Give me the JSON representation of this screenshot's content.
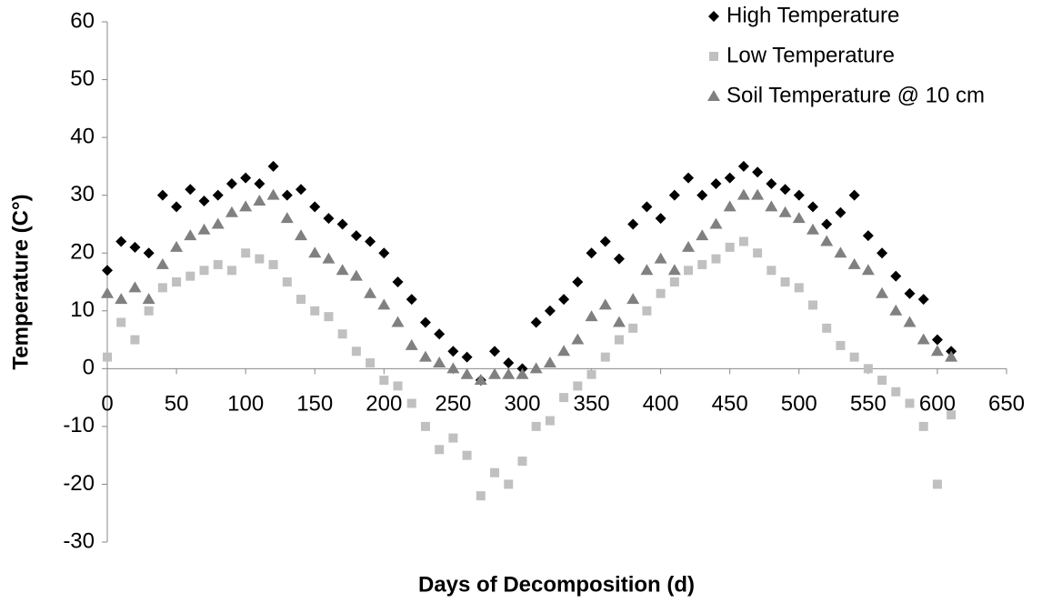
{
  "chart_data": {
    "type": "scatter",
    "x_label": "Days of Decomposition (d)",
    "y_label": "Temperature (C°)",
    "x": [
      0,
      10,
      20,
      30,
      40,
      50,
      60,
      70,
      80,
      90,
      100,
      110,
      120,
      130,
      140,
      150,
      160,
      170,
      180,
      190,
      200,
      210,
      220,
      230,
      240,
      250,
      260,
      270,
      280,
      290,
      300,
      310,
      320,
      330,
      340,
      350,
      360,
      370,
      380,
      390,
      400,
      410,
      420,
      430,
      440,
      450,
      460,
      470,
      480,
      490,
      500,
      510,
      520,
      530,
      540,
      550,
      560,
      570,
      580,
      590,
      600,
      610
    ],
    "series": [
      {
        "name": "High Temperature",
        "color": "#000000",
        "marker": "diamond",
        "values": [
          17,
          22,
          21,
          20,
          30,
          28,
          31,
          29,
          30,
          32,
          33,
          32,
          35,
          30,
          31,
          28,
          26,
          25,
          23,
          22,
          20,
          15,
          12,
          8,
          6,
          3,
          2,
          -2,
          3,
          1,
          0,
          8,
          10,
          12,
          15,
          20,
          22,
          19,
          25,
          28,
          26,
          30,
          33,
          30,
          32,
          33,
          35,
          34,
          32,
          31,
          30,
          28,
          25,
          27,
          30,
          23,
          20,
          16,
          13,
          12,
          5,
          3
        ]
      },
      {
        "name": "Low Temperature",
        "color": "#c0c0c0",
        "marker": "square",
        "values": [
          2,
          8,
          5,
          10,
          14,
          15,
          16,
          17,
          18,
          17,
          20,
          19,
          18,
          15,
          12,
          10,
          9,
          6,
          3,
          1,
          -2,
          -3,
          -6,
          -10,
          -14,
          -12,
          -15,
          -22,
          -18,
          -20,
          -16,
          -10,
          -9,
          -5,
          -3,
          -1,
          2,
          5,
          7,
          10,
          13,
          15,
          17,
          18,
          19,
          21,
          22,
          20,
          17,
          15,
          14,
          11,
          7,
          4,
          2,
          0,
          -2,
          -4,
          -6,
          -10,
          -20,
          -8
        ]
      },
      {
        "name": "Soil Temperature @ 10 cm",
        "color": "#808080",
        "marker": "triangle",
        "values": [
          13,
          12,
          14,
          12,
          18,
          21,
          23,
          24,
          25,
          27,
          28,
          29,
          30,
          26,
          23,
          20,
          19,
          17,
          16,
          13,
          11,
          8,
          4,
          2,
          1,
          0,
          -1,
          -2,
          -1,
          -1,
          -1,
          0,
          1,
          3,
          5,
          9,
          11,
          8,
          12,
          17,
          19,
          17,
          21,
          23,
          25,
          28,
          30,
          30,
          28,
          27,
          26,
          24,
          22,
          20,
          18,
          17,
          13,
          10,
          8,
          5,
          3,
          2
        ]
      }
    ],
    "xlim": [
      0,
      650
    ],
    "xticks": [
      0,
      50,
      100,
      150,
      200,
      250,
      300,
      350,
      400,
      450,
      500,
      550,
      600,
      650
    ],
    "ylim": [
      -30,
      60
    ],
    "yticks": [
      -30,
      -20,
      -10,
      0,
      10,
      20,
      30,
      40,
      50,
      60
    ],
    "legend": "top-right"
  }
}
